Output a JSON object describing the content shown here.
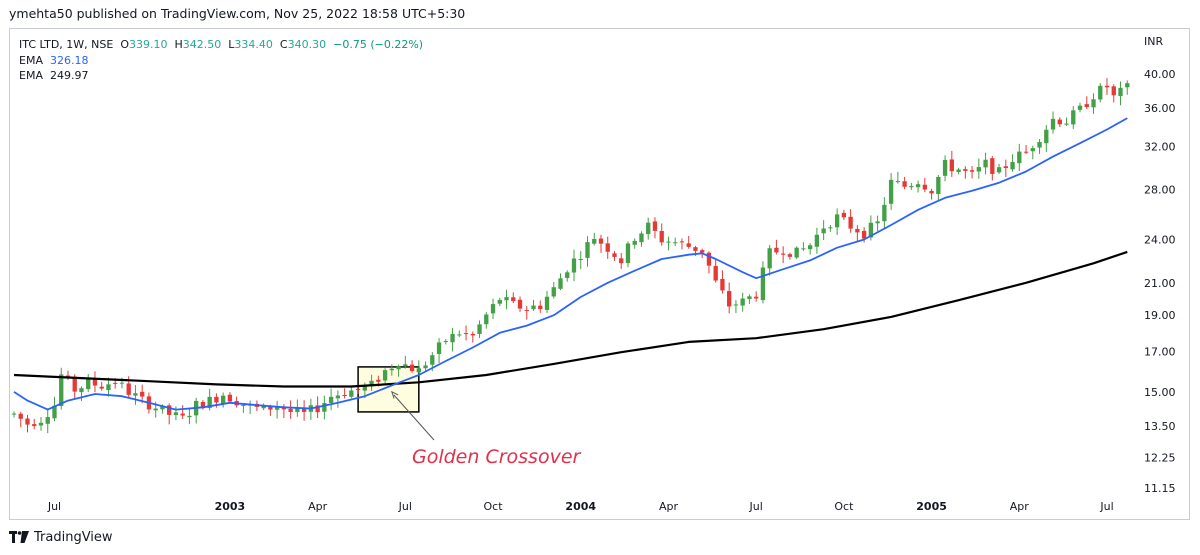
{
  "header": {
    "publisher": "ymehta50 published on TradingView.com, Nov 25, 2022 18:58 UTC+5:30"
  },
  "legend": {
    "symbol": "ITC LTD, 1W, NSE",
    "o_label": "O",
    "o_value": "339.10",
    "h_label": "H",
    "h_value": "342.50",
    "l_label": "L",
    "l_value": "334.40",
    "c_label": "C",
    "c_value": "340.30",
    "change": "−0.75 (−0.22%)",
    "ema1_label": "EMA",
    "ema1_value": "326.18",
    "ema2_label": "EMA",
    "ema2_value": "249.97"
  },
  "currency": "INR",
  "annotation": "Golden Crossover",
  "footer": {
    "brand": "TradingView"
  },
  "colors": {
    "up": "#43a047",
    "down": "#e53935",
    "ema_fast": "#2962ff",
    "ema_slow": "#000000",
    "highlight": "#fffde0"
  },
  "chart_data": {
    "type": "candlestick",
    "title": "ITC LTD, 1W, NSE",
    "y_scale": "log",
    "ylim": [
      11.15,
      41.5
    ],
    "y_ticks": [
      "40.00",
      "36.00",
      "32.00",
      "28.00",
      "24.00",
      "21.00",
      "19.00",
      "17.00",
      "15.00",
      "13.50",
      "12.25",
      "11.15"
    ],
    "x_ticks": [
      {
        "label": "Jul",
        "week": 6,
        "bold": false
      },
      {
        "label": "2003",
        "week": 32,
        "bold": true
      },
      {
        "label": "Apr",
        "week": 45,
        "bold": false
      },
      {
        "label": "Jul",
        "week": 58,
        "bold": false
      },
      {
        "label": "Oct",
        "week": 71,
        "bold": false
      },
      {
        "label": "2004",
        "week": 84,
        "bold": true
      },
      {
        "label": "Apr",
        "week": 97,
        "bold": false
      },
      {
        "label": "Jul",
        "week": 110,
        "bold": false
      },
      {
        "label": "Oct",
        "week": 123,
        "bold": false
      },
      {
        "label": "2005",
        "week": 136,
        "bold": true
      },
      {
        "label": "Apr",
        "week": 149,
        "bold": false
      },
      {
        "label": "Jul",
        "week": 162,
        "bold": false
      }
    ],
    "weeks": 166,
    "close_path": [
      [
        0,
        14.0
      ],
      [
        2,
        13.6
      ],
      [
        4,
        13.8
      ],
      [
        6,
        14.4
      ],
      [
        7,
        15.8
      ],
      [
        9,
        15.1
      ],
      [
        11,
        15.4
      ],
      [
        13,
        15.3
      ],
      [
        15,
        15.5
      ],
      [
        17,
        15.0
      ],
      [
        19,
        14.6
      ],
      [
        21,
        14.3
      ],
      [
        23,
        14.0
      ],
      [
        25,
        13.8
      ],
      [
        27,
        14.4
      ],
      [
        29,
        14.6
      ],
      [
        31,
        14.9
      ],
      [
        33,
        14.6
      ],
      [
        35,
        14.3
      ],
      [
        37,
        14.2
      ],
      [
        39,
        14.4
      ],
      [
        41,
        14.1
      ],
      [
        43,
        14.0
      ],
      [
        45,
        14.3
      ],
      [
        47,
        14.8
      ],
      [
        49,
        15.0
      ],
      [
        51,
        15.1
      ],
      [
        53,
        15.3
      ],
      [
        55,
        16.0
      ],
      [
        57,
        16.5
      ],
      [
        58,
        16.3
      ],
      [
        60,
        16.0
      ],
      [
        62,
        16.8
      ],
      [
        64,
        17.6
      ],
      [
        66,
        18.0
      ],
      [
        68,
        17.8
      ],
      [
        70,
        19.0
      ],
      [
        72,
        20.0
      ],
      [
        74,
        19.6
      ],
      [
        76,
        19.4
      ],
      [
        78,
        19.6
      ],
      [
        80,
        20.6
      ],
      [
        82,
        22.0
      ],
      [
        84,
        23.0
      ],
      [
        86,
        24.2
      ],
      [
        88,
        23.4
      ],
      [
        90,
        22.5
      ],
      [
        92,
        24.2
      ],
      [
        94,
        25.0
      ],
      [
        96,
        24.0
      ],
      [
        98,
        23.8
      ],
      [
        100,
        23.5
      ],
      [
        102,
        23.2
      ],
      [
        104,
        21.0
      ],
      [
        106,
        19.6
      ],
      [
        108,
        19.8
      ],
      [
        110,
        20.3
      ],
      [
        112,
        23.0
      ],
      [
        114,
        23.3
      ],
      [
        116,
        23.0
      ],
      [
        118,
        23.6
      ],
      [
        120,
        25.0
      ],
      [
        122,
        25.7
      ],
      [
        124,
        25.0
      ],
      [
        126,
        24.5
      ],
      [
        128,
        25.2
      ],
      [
        130,
        28.6
      ],
      [
        132,
        28.3
      ],
      [
        134,
        28.8
      ],
      [
        136,
        28.0
      ],
      [
        138,
        30.2
      ],
      [
        140,
        29.8
      ],
      [
        142,
        29.2
      ],
      [
        144,
        30.3
      ],
      [
        146,
        29.5
      ],
      [
        148,
        30.8
      ],
      [
        150,
        31.4
      ],
      [
        152,
        33.0
      ],
      [
        154,
        34.8
      ],
      [
        156,
        34.6
      ],
      [
        158,
        35.8
      ],
      [
        160,
        37.5
      ],
      [
        162,
        38.5
      ],
      [
        163,
        37.2
      ],
      [
        165,
        38.3
      ]
    ],
    "ema_fast": {
      "name": "EMA",
      "last": "326.18",
      "color": "#2962ff",
      "points": [
        [
          0,
          15.0
        ],
        [
          2,
          14.6
        ],
        [
          5,
          14.2
        ],
        [
          8,
          14.6
        ],
        [
          12,
          14.9
        ],
        [
          16,
          14.8
        ],
        [
          20,
          14.5
        ],
        [
          24,
          14.2
        ],
        [
          28,
          14.3
        ],
        [
          32,
          14.5
        ],
        [
          36,
          14.4
        ],
        [
          40,
          14.3
        ],
        [
          44,
          14.25
        ],
        [
          48,
          14.5
        ],
        [
          52,
          14.8
        ],
        [
          56,
          15.3
        ],
        [
          60,
          15.8
        ],
        [
          64,
          16.5
        ],
        [
          68,
          17.2
        ],
        [
          72,
          18.0
        ],
        [
          76,
          18.4
        ],
        [
          80,
          19.0
        ],
        [
          84,
          20.1
        ],
        [
          88,
          21.0
        ],
        [
          92,
          21.8
        ],
        [
          96,
          22.6
        ],
        [
          100,
          22.9
        ],
        [
          102,
          23.0
        ],
        [
          104,
          22.6
        ],
        [
          108,
          21.7
        ],
        [
          110,
          21.3
        ],
        [
          114,
          21.9
        ],
        [
          118,
          22.5
        ],
        [
          122,
          23.4
        ],
        [
          126,
          24.0
        ],
        [
          130,
          25.1
        ],
        [
          134,
          26.3
        ],
        [
          138,
          27.3
        ],
        [
          142,
          27.9
        ],
        [
          146,
          28.6
        ],
        [
          150,
          29.6
        ],
        [
          154,
          31.0
        ],
        [
          158,
          32.3
        ],
        [
          162,
          33.7
        ],
        [
          165,
          34.9
        ]
      ]
    },
    "ema_slow": {
      "name": "EMA",
      "last": "249.97",
      "color": "#000000",
      "points": [
        [
          0,
          15.8
        ],
        [
          10,
          15.65
        ],
        [
          20,
          15.5
        ],
        [
          30,
          15.35
        ],
        [
          40,
          15.25
        ],
        [
          50,
          15.25
        ],
        [
          60,
          15.45
        ],
        [
          70,
          15.8
        ],
        [
          80,
          16.35
        ],
        [
          90,
          16.95
        ],
        [
          100,
          17.5
        ],
        [
          110,
          17.7
        ],
        [
          120,
          18.2
        ],
        [
          130,
          18.9
        ],
        [
          140,
          19.9
        ],
        [
          150,
          21.0
        ],
        [
          160,
          22.3
        ],
        [
          165,
          23.1
        ]
      ]
    },
    "annotation": {
      "text": "Golden Crossover",
      "box": {
        "week_from": 51,
        "week_to": 60,
        "price_low": 14.1,
        "price_high": 16.2
      },
      "arrow_tip": {
        "week": 56,
        "price": 15.0
      }
    }
  }
}
